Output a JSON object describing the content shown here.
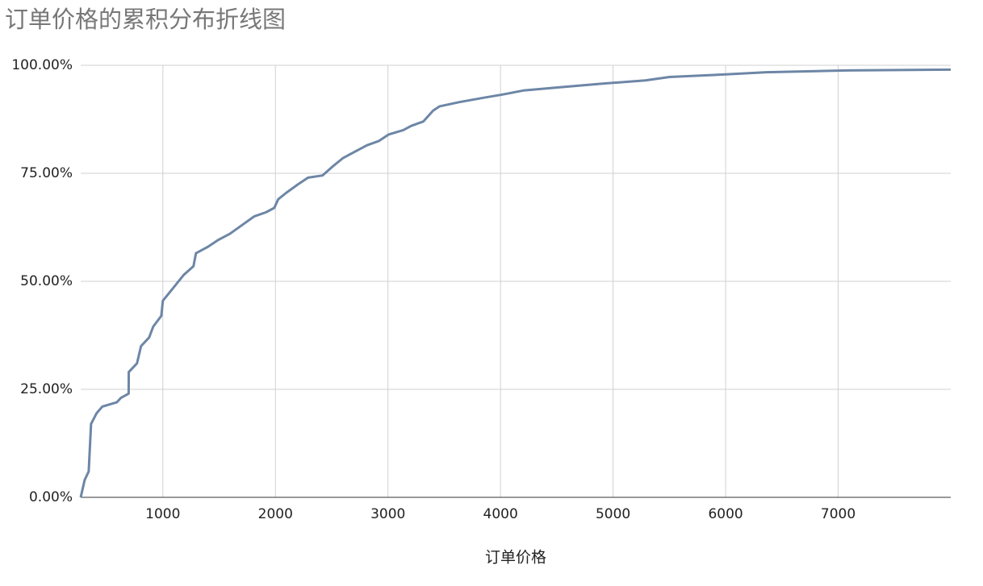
{
  "chart_data": {
    "type": "line",
    "title": "订单价格的累积分布折线图",
    "x_label": "订单价格",
    "x": [
      270,
      305,
      341,
      362,
      412,
      462,
      591,
      626,
      696,
      697,
      770,
      806,
      878,
      914,
      986,
      1000,
      1093,
      1186,
      1272,
      1294,
      1401,
      1487,
      1595,
      1703,
      1810,
      1918,
      1990,
      2025,
      2097,
      2204,
      2290,
      2419,
      2505,
      2599,
      2706,
      2814,
      2921,
      3007,
      3136,
      3208,
      3315,
      3401,
      3459,
      3638,
      3853,
      4011,
      4212,
      4570,
      4928,
      5287,
      5502,
      6003,
      6362,
      7079,
      8000
    ],
    "series": [
      {
        "name": "累积分布",
        "color": "#6d86a6",
        "values": [
          0,
          4,
          6,
          17,
          19.5,
          21,
          22,
          23,
          24,
          29,
          31,
          35,
          37,
          39.5,
          42,
          45.5,
          48.5,
          51.5,
          53.5,
          56.5,
          58,
          59.5,
          61,
          63,
          65,
          66,
          67,
          69,
          70.5,
          72.5,
          74,
          74.5,
          76.5,
          78.5,
          80,
          81.5,
          82.5,
          84,
          85,
          86,
          87,
          89.5,
          90.5,
          91.5,
          92.5,
          93.2,
          94.2,
          95,
          95.8,
          96.5,
          97.3,
          97.9,
          98.4,
          98.8,
          99
        ]
      }
    ],
    "xlim": [
      270,
      8000
    ],
    "xticks": [
      1000,
      2000,
      3000,
      4000,
      5000,
      6000,
      7000
    ],
    "ylim": [
      0,
      100
    ],
    "yticks": [
      {
        "value": 0,
        "label": "0.00%"
      },
      {
        "value": 25,
        "label": "25.00%"
      },
      {
        "value": 50,
        "label": "50.00%"
      },
      {
        "value": 75,
        "label": "75.00%"
      },
      {
        "value": 100,
        "label": "100.00%"
      }
    ],
    "grid": true
  }
}
